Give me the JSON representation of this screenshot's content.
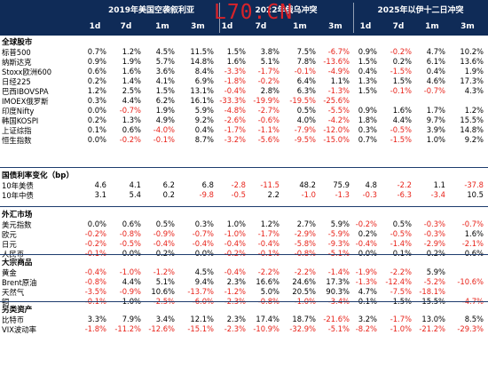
{
  "header": {
    "watermark": "L70.CN",
    "groups": [
      {
        "title": "2019年美国空袭叙利亚",
        "columns": [
          "1d",
          "7d",
          "1m",
          "3m"
        ]
      },
      {
        "title": "2022年俄乌冲突",
        "columns": [
          "1d",
          "7d",
          "1m",
          "3m"
        ]
      },
      {
        "title": "2025年以伊十二日冲突",
        "columns": [
          "1d",
          "7d",
          "1m",
          "3m"
        ]
      }
    ]
  },
  "sections": [
    {
      "title": "全球股市",
      "rows": [
        {
          "label": "标普500",
          "values": [
            "0.7%",
            "1.2%",
            "4.5%",
            "11.5%",
            "1.5%",
            "3.8%",
            "7.5%",
            "-6.7%",
            "0.9%",
            "-0.2%",
            "4.7%",
            "10.2%"
          ]
        },
        {
          "label": "纳斯达克",
          "values": [
            "0.9%",
            "1.9%",
            "5.7%",
            "14.8%",
            "1.6%",
            "5.1%",
            "7.8%",
            "-13.6%",
            "1.5%",
            "0.2%",
            "6.1%",
            "13.6%"
          ]
        },
        {
          "label": "Stoxx欧洲600",
          "values": [
            "0.6%",
            "1.6%",
            "3.6%",
            "8.4%",
            "-3.3%",
            "-1.7%",
            "-0.1%",
            "-4.9%",
            "0.4%",
            "-1.5%",
            "0.4%",
            "1.9%"
          ]
        },
        {
          "label": "日经225",
          "values": [
            "0.2%",
            "1.4%",
            "4.1%",
            "6.9%",
            "-1.8%",
            "-0.2%",
            "6.4%",
            "1.1%",
            "1.3%",
            "1.5%",
            "4.6%",
            "17.3%"
          ]
        },
        {
          "label": "巴西IBOVSPA",
          "values": [
            "1.2%",
            "2.5%",
            "1.5%",
            "13.1%",
            "-0.4%",
            "2.8%",
            "6.3%",
            "-1.3%",
            "1.5%",
            "-0.1%",
            "-0.7%",
            "4.3%"
          ]
        },
        {
          "label": "IMOEX俄罗斯",
          "values": [
            "0.3%",
            "4.4%",
            "6.2%",
            "16.1%",
            "-33.3%",
            "-19.9%",
            "-19.5%",
            "-25.6%",
            "",
            "",
            "",
            ""
          ]
        },
        {
          "label": "印度Nifty",
          "values": [
            "0.0%",
            "-0.7%",
            "1.9%",
            "5.9%",
            "-4.8%",
            "-2.7%",
            "0.5%",
            "-5.5%",
            "0.9%",
            "1.6%",
            "1.7%",
            "1.2%"
          ]
        },
        {
          "label": "韩国KOSPI",
          "values": [
            "0.2%",
            "1.3%",
            "4.9%",
            "9.2%",
            "-2.6%",
            "-0.6%",
            "4.0%",
            "-4.2%",
            "1.8%",
            "4.4%",
            "9.7%",
            "15.5%"
          ]
        },
        {
          "label": "上证综指",
          "values": [
            "0.1%",
            "0.6%",
            "-4.0%",
            "0.4%",
            "-1.7%",
            "-1.1%",
            "-7.9%",
            "-12.0%",
            "0.3%",
            "-0.5%",
            "3.9%",
            "14.8%"
          ]
        },
        {
          "label": "恒生指数",
          "values": [
            "0.0%",
            "-0.2%",
            "-0.1%",
            "8.7%",
            "-3.2%",
            "-5.6%",
            "-9.5%",
            "-15.0%",
            "0.7%",
            "-1.5%",
            "1.0%",
            "9.2%"
          ]
        }
      ]
    },
    {
      "title": "国债利率变化（bp）",
      "rows": [
        {
          "label": "10年美债",
          "values": [
            "4.6",
            "4.1",
            "6.2",
            "6.8",
            "-2.8",
            "-11.5",
            "48.2",
            "75.9",
            "4.8",
            "-2.2",
            "1.1",
            "-37.8"
          ]
        },
        {
          "label": "10年中债",
          "values": [
            "3.1",
            "5.4",
            "0.2",
            "-9.8",
            "-0.5",
            "2.2",
            "-1.0",
            "-1.3",
            "-0.3",
            "-6.3",
            "-3.4",
            "10.5"
          ]
        }
      ]
    },
    {
      "title": "外汇市场",
      "rows": [
        {
          "label": "美元指数",
          "values": [
            "0.0%",
            "0.6%",
            "0.5%",
            "0.3%",
            "1.0%",
            "1.2%",
            "2.7%",
            "5.9%",
            "-0.2%",
            "0.5%",
            "-0.3%",
            "-0.7%"
          ]
        },
        {
          "label": "欧元",
          "values": [
            "-0.2%",
            "-0.8%",
            "-0.9%",
            "-0.7%",
            "-1.0%",
            "-1.7%",
            "-2.9%",
            "-5.9%",
            "0.2%",
            "-0.5%",
            "-0.3%",
            "1.6%"
          ]
        },
        {
          "label": "日元",
          "values": [
            "-0.2%",
            "-0.5%",
            "-0.4%",
            "-0.4%",
            "-0.4%",
            "-0.4%",
            "-5.8%",
            "-9.3%",
            "-0.4%",
            "-1.4%",
            "-2.9%",
            "-2.1%"
          ]
        },
        {
          "label": "人民币",
          "values": [
            "-0.1%",
            "0.0%",
            "0.2%",
            "0.0%",
            "-0.2%",
            "-0.1%",
            "-0.8%",
            "-5.1%",
            "0.0%",
            "0.1%",
            "0.2%",
            "0.6%"
          ]
        }
      ]
    },
    {
      "title": "大宗商品",
      "rows": [
        {
          "label": "黄金",
          "values": [
            "-0.4%",
            "-1.0%",
            "-1.2%",
            "4.5%",
            "-0.4%",
            "-2.2%",
            "-2.2%",
            "-1.4%",
            "-1.9%",
            "-2.2%",
            "5.9%",
            ""
          ]
        },
        {
          "label": "Brent原油",
          "values": [
            "-0.8%",
            "4.4%",
            "5.1%",
            "9.4%",
            "2.3%",
            "16.6%",
            "24.6%",
            "17.3%",
            "-1.3%",
            "-12.4%",
            "-5.2%",
            "-10.6%"
          ]
        },
        {
          "label": "天然气",
          "values": [
            "-3.5%",
            "-0.9%",
            "10.6%",
            "-13.7%",
            "-1.2%",
            "5.0%",
            "20.5%",
            "90.3%",
            "4.7%",
            "-7.5%",
            "-18.1%",
            ""
          ]
        },
        {
          "label": "铜",
          "values": [
            "-0.1%",
            "1.0%",
            "-2.5%",
            "-6.0%",
            "-2.3%",
            "-0.8%",
            "-1.0%",
            "-3.4%",
            "0.1%",
            "1.5%",
            "15.5%",
            "-4.7%"
          ]
        }
      ]
    },
    {
      "title": "另类资产",
      "rows": [
        {
          "label": "比特币",
          "values": [
            "3.3%",
            "7.9%",
            "3.4%",
            "12.1%",
            "2.3%",
            "17.4%",
            "18.7%",
            "-21.6%",
            "3.2%",
            "-1.7%",
            "13.0%",
            "8.5%"
          ]
        },
        {
          "label": "VIX波动率",
          "values": [
            "-1.8%",
            "-11.2%",
            "-12.6%",
            "-15.1%",
            "-2.3%",
            "-10.9%",
            "-32.9%",
            "-5.1%",
            "-8.2%",
            "-1.0%",
            "-21.2%",
            "-29.3%"
          ]
        }
      ]
    }
  ]
}
